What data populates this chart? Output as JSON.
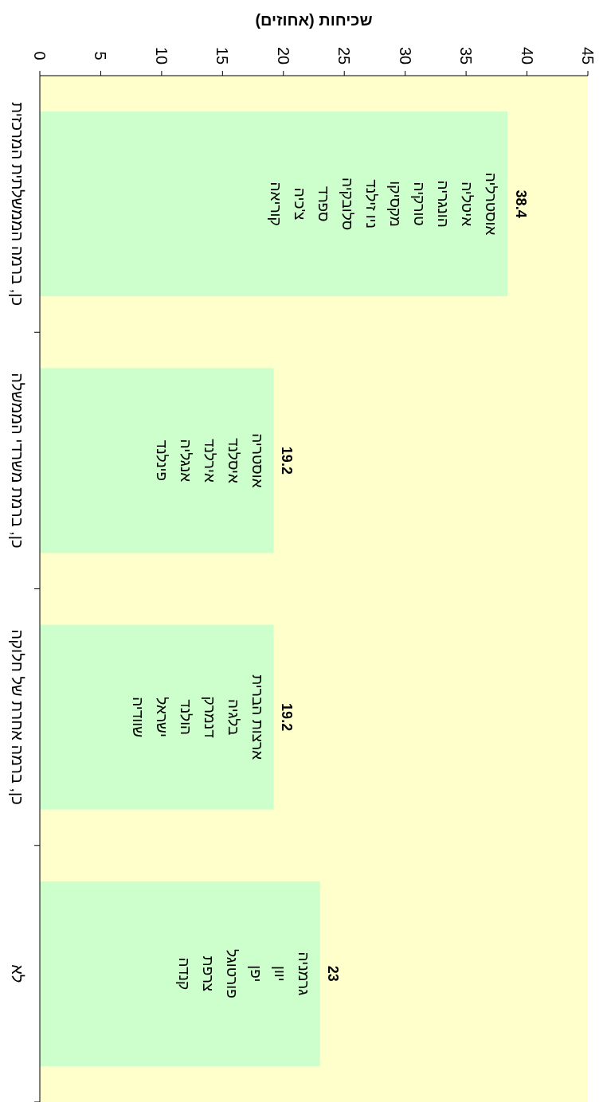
{
  "chart_data": {
    "type": "bar",
    "orientation": "horizontal",
    "xlabel": "שכיחות (אחוזים)",
    "categories": [
      "כן, ברמה הממשלתית המרכזית",
      "כן, ברמת משרדי הממשלה",
      "כן, ברמה אחרת של חלוקה",
      "לא"
    ],
    "values": [
      38.4,
      19.2,
      19.2,
      23
    ],
    "color": "#ccffcc",
    "xlim": [
      0,
      45
    ],
    "xticks": [
      0,
      5,
      10,
      15,
      20,
      25,
      30,
      35,
      40,
      45
    ],
    "data_labels": true,
    "annotations": [
      "אוסטרליה\nאיטליה\nהונגריה\nטורקיה\nמקסיקו\nניו זילנד\nסלובקיה\nספרד\nצ'כיה\nקוריאה",
      "אוסטריה\nאיסלנד\nאירלנד\nאנגליה\nפינלנד",
      "ארצות הברית\nבלגיה\nדנמרק\nהולנד\nישראל\nשוודיה",
      "גרמניה\nיוון\nיפן\nפורטוגל\nצרפת\nקנדה"
    ]
  }
}
